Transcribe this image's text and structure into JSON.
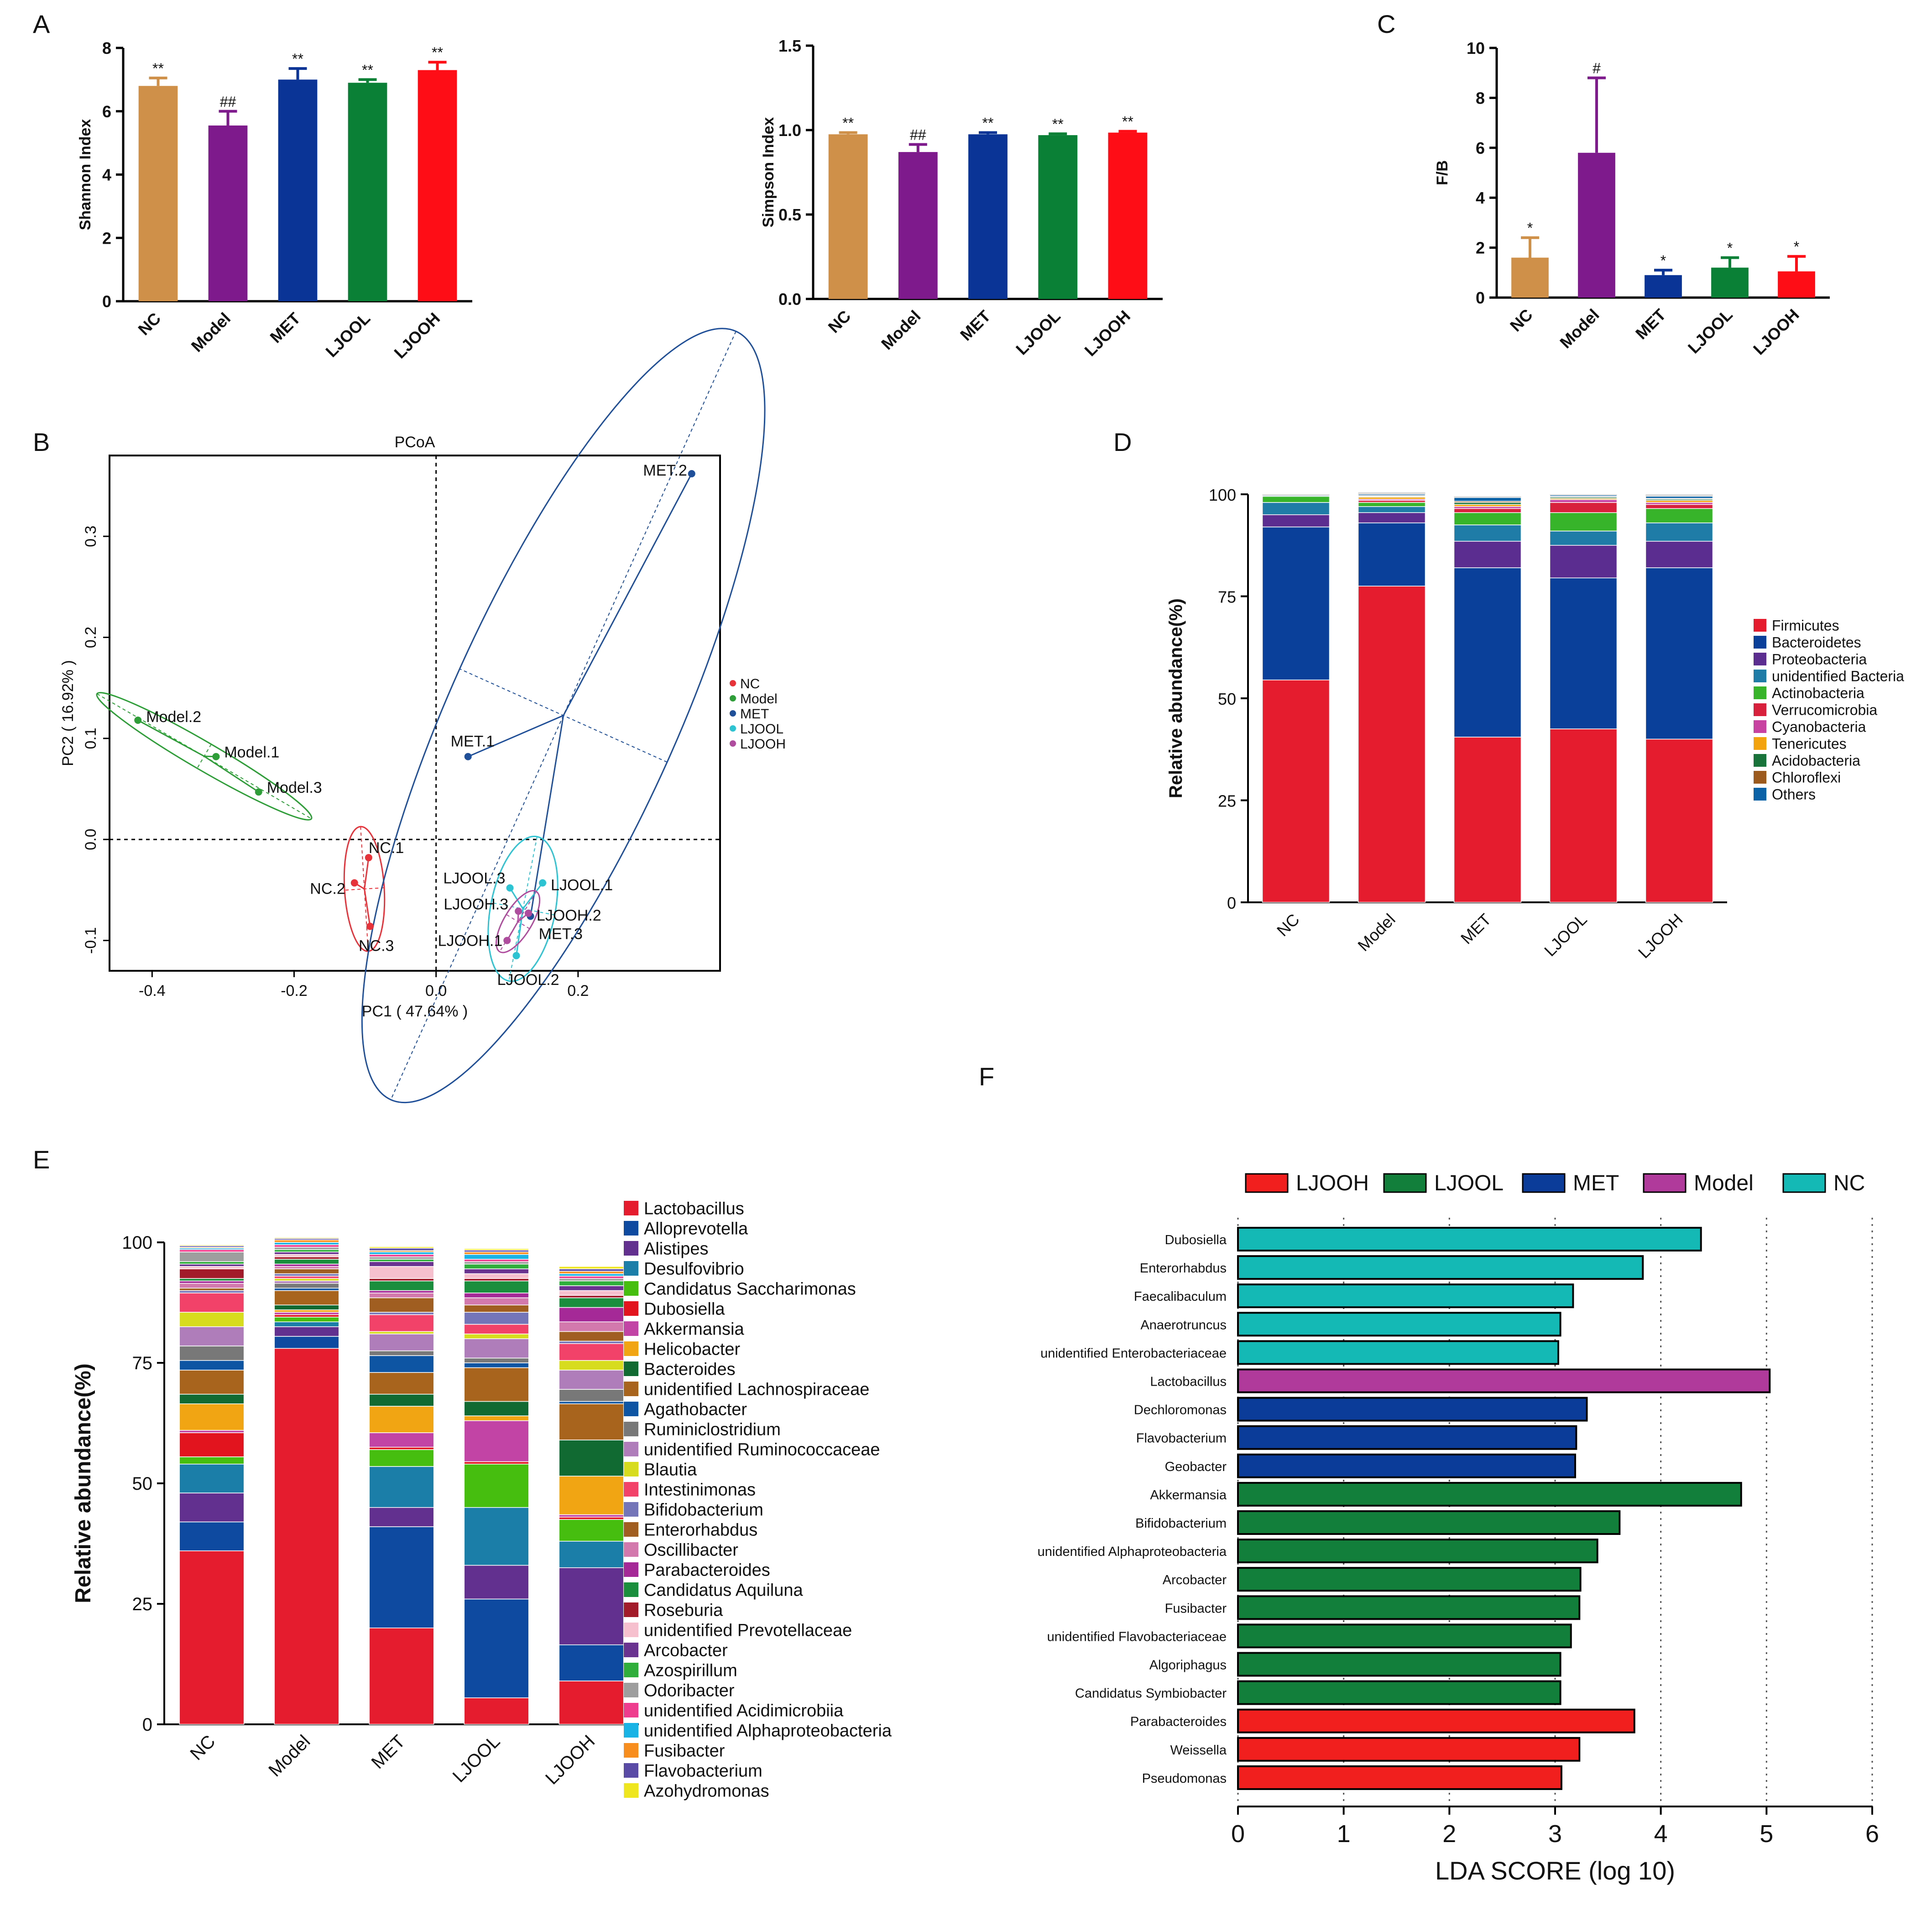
{
  "colors": {
    "NC": "#CF914A",
    "Model": "#7E1A8C",
    "MET": "#0A3596",
    "LJOOL": "#0A8037",
    "LJOOH": "#FE0D16",
    "pcoa_NC": "#E8323A",
    "pcoa_Model": "#2E9E38",
    "pcoa_MET": "#1F4F99",
    "pcoa_LJOOL": "#2EC3D2",
    "pcoa_LJOOH": "#B04C9E",
    "lefse_NC": "#14B8B5",
    "lefse_Model": "#B03A9B",
    "lefse_MET": "#0C3C9A",
    "lefse_LJOOL": "#12803A",
    "lefse_LJOOH": "#F21F1F"
  },
  "panel_letters": {
    "A": "A",
    "B": "B",
    "C": "C",
    "D": "D",
    "E": "E",
    "F": "F"
  },
  "chart_data": [
    {
      "id": "shannon",
      "type": "bar",
      "title": "",
      "ylabel": "Shannon Index",
      "ylim": [
        0,
        8
      ],
      "yticks": [
        "0",
        "2",
        "4",
        "6",
        "8"
      ],
      "categories": [
        "NC",
        "Model",
        "MET",
        "LJOOL",
        "LJOOH"
      ],
      "values": [
        6.8,
        5.55,
        7.0,
        6.9,
        7.3
      ],
      "errors": [
        0.25,
        0.45,
        0.35,
        0.1,
        0.25
      ],
      "annotations": [
        "**",
        "##",
        "**",
        "**",
        "**"
      ]
    },
    {
      "id": "simpson",
      "type": "bar",
      "title": "",
      "ylabel": "Simpson Index",
      "ylim": [
        0,
        1.5
      ],
      "yticks": [
        "0.0",
        "0.5",
        "1.0",
        "1.5"
      ],
      "categories": [
        "NC",
        "Model",
        "MET",
        "LJOOL",
        "LJOOH"
      ],
      "values": [
        0.975,
        0.87,
        0.975,
        0.97,
        0.985
      ],
      "errors": [
        0.01,
        0.045,
        0.01,
        0.008,
        0.008
      ],
      "annotations": [
        "**",
        "##",
        "**",
        "**",
        "**"
      ]
    },
    {
      "id": "fb",
      "type": "bar",
      "title": "",
      "ylabel": "F/B",
      "ylim": [
        0,
        10
      ],
      "yticks": [
        "0",
        "2",
        "4",
        "6",
        "8",
        "10"
      ],
      "categories": [
        "NC",
        "Model",
        "MET",
        "LJOOL",
        "LJOOH"
      ],
      "values": [
        1.6,
        5.8,
        0.9,
        1.2,
        1.05
      ],
      "errors": [
        0.8,
        3.0,
        0.2,
        0.4,
        0.6
      ],
      "annotations": [
        "*",
        "#",
        "*",
        "*",
        "*"
      ]
    },
    {
      "id": "pcoa",
      "type": "scatter",
      "title": "PCoA",
      "xlabel": "PC1 ( 47.64% )",
      "ylabel": "PC2 ( 16.92% )",
      "xlim": [
        -0.46,
        0.4
      ],
      "ylim": [
        -0.13,
        0.38
      ],
      "xticks": [
        "-0.4",
        "-0.2",
        "0.0",
        "0.2"
      ],
      "xtick_values": [
        -0.4,
        -0.2,
        0.0,
        0.2
      ],
      "yticks": [
        "-0.1",
        "0.0",
        "0.1",
        "0.2",
        "0.3"
      ],
      "ytick_values": [
        -0.1,
        0.0,
        0.1,
        0.2,
        0.3
      ],
      "legend": [
        "NC",
        "Model",
        "MET",
        "LJOOL",
        "LJOOH"
      ],
      "points": [
        {
          "label": "NC.1",
          "group": "NC",
          "x": -0.095,
          "y": -0.018
        },
        {
          "label": "NC.2",
          "group": "NC",
          "x": -0.115,
          "y": -0.043
        },
        {
          "label": "NC.3",
          "group": "NC",
          "x": -0.093,
          "y": -0.086
        },
        {
          "label": "Model.2",
          "group": "Model",
          "x": -0.42,
          "y": 0.118
        },
        {
          "label": "Model.1",
          "group": "Model",
          "x": -0.31,
          "y": 0.082
        },
        {
          "label": "Model.3",
          "group": "Model",
          "x": -0.25,
          "y": 0.047
        },
        {
          "label": "MET.2",
          "group": "MET",
          "x": 0.36,
          "y": 0.362
        },
        {
          "label": "MET.1",
          "group": "MET",
          "x": 0.045,
          "y": 0.082
        },
        {
          "label": "MET.3",
          "group": "MET",
          "x": 0.133,
          "y": -0.076
        },
        {
          "label": "LJOOL.1",
          "group": "LJOOL",
          "x": 0.15,
          "y": -0.043
        },
        {
          "label": "LJOOL.2",
          "group": "LJOOL",
          "x": 0.113,
          "y": -0.115
        },
        {
          "label": "LJOOL.3",
          "group": "LJOOL",
          "x": 0.104,
          "y": -0.048
        },
        {
          "label": "LJOOH.1",
          "group": "LJOOH",
          "x": 0.1,
          "y": -0.1
        },
        {
          "label": "LJOOH.2",
          "group": "LJOOH",
          "x": 0.13,
          "y": -0.073
        },
        {
          "label": "LJOOH.3",
          "group": "LJOOH",
          "x": 0.116,
          "y": -0.071
        }
      ]
    },
    {
      "id": "phylum",
      "type": "bar",
      "stacked": true,
      "ylabel": "Relative abundance(%)",
      "ylim": [
        0,
        100
      ],
      "yticks": [
        "0",
        "25",
        "50",
        "75",
        "100"
      ],
      "categories": [
        "NC",
        "Model",
        "MET",
        "LJOOL",
        "LJOOH"
      ],
      "series": [
        {
          "name": "Firmicutes",
          "color": "#E51B2E",
          "values": [
            54.5,
            77.5,
            40.5,
            42.5,
            40
          ]
        },
        {
          "name": "Bacteroidetes",
          "color": "#0A409A",
          "values": [
            37.5,
            15.5,
            41.5,
            37,
            42
          ]
        },
        {
          "name": "Proteobacteria",
          "color": "#5B2D90",
          "values": [
            3,
            2.5,
            6.5,
            8,
            6.5
          ]
        },
        {
          "name": "unidentified Bacteria",
          "color": "#1E7CA6",
          "values": [
            3,
            1.5,
            4,
            3.5,
            4.5
          ]
        },
        {
          "name": "Actinobacteria",
          "color": "#37B429",
          "values": [
            1.5,
            1,
            3,
            4.5,
            3.5
          ]
        },
        {
          "name": "Verrucomicrobia",
          "color": "#D8203C",
          "values": [
            0,
            0.5,
            1,
            2.5,
            1
          ]
        },
        {
          "name": "Cyanobacteria",
          "color": "#C843A1",
          "values": [
            0,
            0.3,
            0.5,
            0.7,
            0.5
          ]
        },
        {
          "name": "Tenericutes",
          "color": "#F2A30E",
          "values": [
            0,
            0.5,
            0.5,
            0.3,
            0.5
          ]
        },
        {
          "name": "Acidobacteria",
          "color": "#17733A",
          "values": [
            0,
            0.2,
            0.5,
            0.3,
            0.3
          ]
        },
        {
          "name": "Chloroflexi",
          "color": "#9C5B1C",
          "values": [
            0,
            0.2,
            0.3,
            0.2,
            0.2
          ]
        },
        {
          "name": "Others",
          "color": "#0C62A6",
          "values": [
            0.2,
            0.3,
            0.9,
            0.3,
            0.5
          ]
        }
      ],
      "others_gray": [
        0.3,
        0.5,
        0.3,
        0.2,
        0.5
      ]
    },
    {
      "id": "genus",
      "type": "bar",
      "stacked": true,
      "ylabel": "Relative abundance(%)",
      "ylim": [
        0,
        100
      ],
      "yticks": [
        "0",
        "25",
        "50",
        "75",
        "100"
      ],
      "categories": [
        "NC",
        "Model",
        "MET",
        "LJOOL",
        "LJOOH"
      ],
      "series": [
        {
          "name": "Lactobacillus",
          "color": "#E51B2E",
          "values": [
            36,
            78,
            20,
            5.5,
            9
          ]
        },
        {
          "name": "Alloprevotella",
          "color": "#0D4AA0",
          "values": [
            6,
            2.5,
            21,
            20.5,
            7.5
          ]
        },
        {
          "name": "Alistipes",
          "color": "#62318F",
          "values": [
            6,
            2,
            4,
            7,
            16
          ]
        },
        {
          "name": "Desulfovibrio",
          "color": "#1A7EA8",
          "values": [
            6,
            1,
            8.5,
            12,
            5.5
          ]
        },
        {
          "name": "Candidatus Saccharimonas",
          "color": "#45BE10",
          "values": [
            1.5,
            1,
            3.5,
            9,
            4.5
          ]
        },
        {
          "name": "Dubosiella",
          "color": "#E2151E",
          "values": [
            5,
            0.5,
            0.5,
            0.5,
            0.5
          ]
        },
        {
          "name": "Akkermansia",
          "color": "#C245A5",
          "values": [
            0.5,
            0.5,
            3,
            8.5,
            0.5
          ]
        },
        {
          "name": "Helicobacter",
          "color": "#F2A512",
          "values": [
            5.5,
            0.5,
            5.5,
            1,
            8
          ]
        },
        {
          "name": "Bacteroides",
          "color": "#116A32",
          "values": [
            2,
            1,
            2.5,
            3,
            7.5
          ]
        },
        {
          "name": "unidentified Lachnospiraceae",
          "color": "#A8641C",
          "values": [
            5,
            3,
            4.5,
            7,
            7.5
          ]
        },
        {
          "name": "Agathobacter",
          "color": "#0E56A4",
          "values": [
            2,
            0.5,
            3.5,
            1,
            0.5
          ]
        },
        {
          "name": "Ruminiclostridium",
          "color": "#787878",
          "values": [
            3,
            1,
            1,
            1,
            2.5
          ]
        },
        {
          "name": "unidentified Ruminococcaceae",
          "color": "#AE7DBA",
          "values": [
            4,
            0.5,
            3.5,
            4,
            4
          ]
        },
        {
          "name": "Blautia",
          "color": "#D7DC1E",
          "values": [
            3,
            0.5,
            0.5,
            1,
            2
          ]
        },
        {
          "name": "Intestinimonas",
          "color": "#F2426A",
          "values": [
            4,
            0.5,
            3.5,
            2,
            3.5
          ]
        },
        {
          "name": "Bifidobacterium",
          "color": "#7474B8",
          "values": [
            0.5,
            0.5,
            0.5,
            2.5,
            0.5
          ]
        },
        {
          "name": "Enterorhabdus",
          "color": "#A05E20",
          "values": [
            0.5,
            1,
            3,
            1.5,
            2
          ]
        },
        {
          "name": "Oscillibacter",
          "color": "#D479AE",
          "values": [
            1,
            0.5,
            1,
            1.5,
            2
          ]
        },
        {
          "name": "Parabacteroides",
          "color": "#A52A98",
          "values": [
            0.5,
            0.5,
            0.5,
            1,
            3
          ]
        },
        {
          "name": "Candidatus Aquiluna",
          "color": "#1A8E3C",
          "values": [
            0.5,
            1,
            2,
            2.5,
            2
          ]
        },
        {
          "name": "Roseburia",
          "color": "#A21B2A",
          "values": [
            2,
            0.5,
            0.5,
            0.5,
            0.5
          ]
        },
        {
          "name": "unidentified Prevotellaceae",
          "color": "#F6C0CF",
          "values": [
            0.5,
            0.5,
            2.5,
            1,
            1
          ]
        },
        {
          "name": "Arcobacter",
          "color": "#6A3390",
          "values": [
            0.5,
            0.5,
            1,
            1,
            1
          ]
        },
        {
          "name": "Azospirillum",
          "color": "#2FAE3C",
          "values": [
            0.5,
            0.5,
            0.5,
            1,
            1
          ]
        },
        {
          "name": "Odoribacter",
          "color": "#9E9E9E",
          "values": [
            2,
            0.5,
            0.5,
            0.5,
            0.5
          ]
        },
        {
          "name": "unidentified Acidimicrobiia",
          "color": "#EE3C8F",
          "values": [
            0.5,
            0.5,
            0.5,
            0.5,
            0.5
          ]
        },
        {
          "name": "unidentified Alphaproteobacteria",
          "color": "#19B3E5",
          "values": [
            0.3,
            0.5,
            0.5,
            1,
            0.5
          ]
        },
        {
          "name": "Fusibacter",
          "color": "#F78E1E",
          "values": [
            0.2,
            0.5,
            0.3,
            0.5,
            0.5
          ]
        },
        {
          "name": "Flavobacterium",
          "color": "#5A4BA6",
          "values": [
            0.3,
            0.3,
            0.5,
            0.4,
            0.5
          ]
        },
        {
          "name": "Azohydromonas",
          "color": "#F0E620",
          "values": [
            0.2,
            0.2,
            0.3,
            0.3,
            0.5
          ]
        }
      ]
    },
    {
      "id": "lefse",
      "type": "bar",
      "orientation": "horizontal",
      "xlabel": "LDA SCORE (log 10)",
      "xlim": [
        0,
        6
      ],
      "xticks": [
        "0",
        "1",
        "2",
        "3",
        "4",
        "5",
        "6"
      ],
      "legend": [
        "LJOOH",
        "LJOOL",
        "MET",
        "Model",
        "NC"
      ],
      "bars": [
        {
          "name": "Dubosiella",
          "group": "NC",
          "value": 4.38
        },
        {
          "name": "Enterorhabdus",
          "group": "NC",
          "value": 3.83
        },
        {
          "name": "Faecalibaculum",
          "group": "NC",
          "value": 3.17
        },
        {
          "name": "Anaerotruncus",
          "group": "NC",
          "value": 3.05
        },
        {
          "name": "unidentified Enterobacteriaceae",
          "group": "NC",
          "value": 3.03
        },
        {
          "name": "Lactobacillus",
          "group": "Model",
          "value": 5.03
        },
        {
          "name": "Dechloromonas",
          "group": "MET",
          "value": 3.3
        },
        {
          "name": "Flavobacterium",
          "group": "MET",
          "value": 3.2
        },
        {
          "name": "Geobacter",
          "group": "MET",
          "value": 3.19
        },
        {
          "name": "Akkermansia",
          "group": "LJOOL",
          "value": 4.76
        },
        {
          "name": "Bifidobacterium",
          "group": "LJOOL",
          "value": 3.61
        },
        {
          "name": "unidentified Alphaproteobacteria",
          "group": "LJOOL",
          "value": 3.4
        },
        {
          "name": "Arcobacter",
          "group": "LJOOL",
          "value": 3.24
        },
        {
          "name": "Fusibacter",
          "group": "LJOOL",
          "value": 3.23
        },
        {
          "name": "unidentified Flavobacteriaceae",
          "group": "LJOOL",
          "value": 3.15
        },
        {
          "name": "Algoriphagus",
          "group": "LJOOL",
          "value": 3.05
        },
        {
          "name": "Candidatus Symbiobacter",
          "group": "LJOOL",
          "value": 3.05
        },
        {
          "name": "Parabacteroides",
          "group": "LJOOH",
          "value": 3.75
        },
        {
          "name": "Weissella",
          "group": "LJOOH",
          "value": 3.23
        },
        {
          "name": "Pseudomonas",
          "group": "LJOOH",
          "value": 3.06
        }
      ]
    }
  ]
}
